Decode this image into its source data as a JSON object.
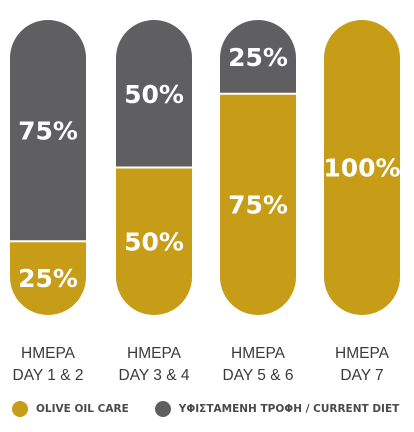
{
  "chart_data": {
    "type": "bar",
    "stacked": true,
    "percent": true,
    "categories": [
      [
        "ΗΜΕΡΑ",
        "DAY 1 & 2"
      ],
      [
        "ΗΜΕΡΑ",
        "DAY 3 & 4"
      ],
      [
        "ΗΜΕΡΑ",
        "DAY 5 & 6"
      ],
      [
        "ΗΜΕΡΑ",
        "DAY 7"
      ]
    ],
    "series": [
      {
        "name": "OLIVE OIL CARE",
        "color": "#c79c16",
        "values": [
          25,
          50,
          75,
          100
        ]
      },
      {
        "name": "ΥΦΙΣΤΑΜΕΝΗ ΤΡΟΦΗ / CURRENT DIET",
        "color": "#5f5f62",
        "values": [
          75,
          50,
          25,
          0
        ]
      }
    ],
    "ylim": [
      0,
      100
    ],
    "grid": false,
    "legend": "bottom"
  }
}
